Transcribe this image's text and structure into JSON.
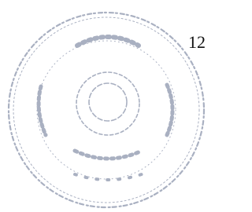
{
  "page_number": "12"
}
